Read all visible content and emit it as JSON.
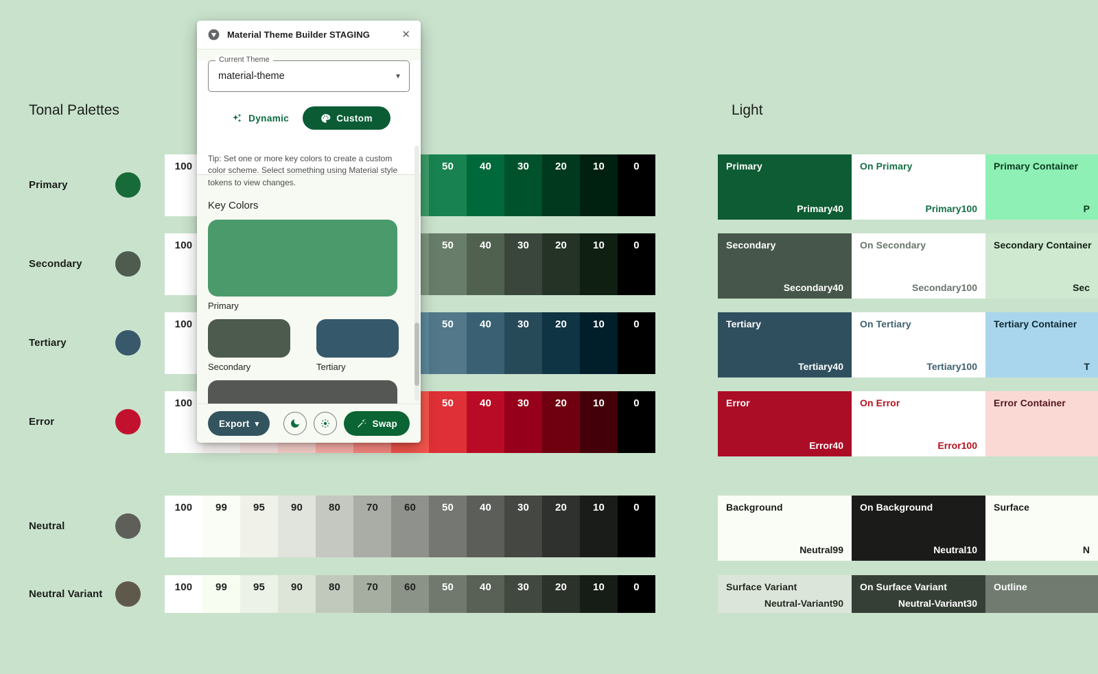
{
  "page": {
    "background": "#C9E2CC"
  },
  "left": {
    "title": "Tonal Palettes",
    "rows": [
      {
        "label": "Primary",
        "color": "#176B39"
      },
      {
        "label": "Secondary",
        "color": "#4E5C50"
      },
      {
        "label": "Tertiary",
        "color": "#38596C"
      },
      {
        "label": "Error",
        "color": "#C2112E"
      },
      {
        "label": "Neutral",
        "color": "#5D5F58"
      },
      {
        "label": "Neutral Variant",
        "color": "#5F594C"
      }
    ]
  },
  "palettes": {
    "tones": [
      "100",
      "99",
      "95",
      "90",
      "80",
      "70",
      "60",
      "50",
      "40",
      "30",
      "20",
      "10",
      "0"
    ],
    "white_text_from": 7,
    "rows": [
      {
        "name": "primary",
        "colors": [
          "#FFFFFF",
          "#F5FFF2",
          "#C2FFCE",
          "#92F2B9",
          "#76D69D",
          "#59BA83",
          "#3C9E69",
          "#188350",
          "#00693B",
          "#00522D",
          "#00391E",
          "#002110",
          "#000000"
        ]
      },
      {
        "name": "secondary",
        "colors": [
          "#FFFFFF",
          "#F6FFF1",
          "#DEEDD8",
          "#CFE9D0",
          "#B3CCB4",
          "#98B199",
          "#7E967F",
          "#697E6A",
          "#50614F",
          "#3A463B",
          "#243326",
          "#0F1F12",
          "#000000"
        ]
      },
      {
        "name": "tertiary",
        "colors": [
          "#FFFFFF",
          "#F3FAFF",
          "#DCF3FF",
          "#AFDBEF",
          "#93BFD5",
          "#78A4B9",
          "#5D899E",
          "#52788A",
          "#3A6173",
          "#274A59",
          "#0F3443",
          "#001F2A",
          "#000000"
        ]
      },
      {
        "name": "error",
        "colors": [
          "#FFFFFF",
          "#FFF9F8",
          "#FFE9E6",
          "#FFD6D1",
          "#FFB3AC",
          "#FC8A82",
          "#F4564C",
          "#DE3036",
          "#BA0B26",
          "#96001A",
          "#700010",
          "#440008",
          "#000000"
        ]
      },
      {
        "name": "neutral",
        "colors": [
          "#FFFFFF",
          "#FAFDF5",
          "#F0F2EA",
          "#E1E3DD",
          "#C5C7C1",
          "#AAACA6",
          "#8F918C",
          "#757772",
          "#5C5E5A",
          "#454743",
          "#2E312D",
          "#191C19",
          "#000000"
        ]
      },
      {
        "name": "neutral-variant",
        "colors": [
          "#FFFFFF",
          "#F8FDF2",
          "#ECF2E8",
          "#DDE5D9",
          "#C1C9BD",
          "#A6AEA2",
          "#8B9388",
          "#71796E",
          "#596156",
          "#41483F",
          "#2B322A",
          "#161D16",
          "#000000"
        ]
      }
    ]
  },
  "light": {
    "title": "Light",
    "rows": [
      [
        {
          "title": "Primary",
          "token": "Primary40",
          "bg": "#0E5C33",
          "fg": "#FFFFFF"
        },
        {
          "title": "On Primary",
          "token": "Primary100",
          "bg": "#FFFFFF",
          "fg": "#147045"
        },
        {
          "title": "Primary Container",
          "token": "P",
          "bg": "#8FF0B5",
          "fg": "#0A3B1F"
        }
      ],
      [
        {
          "title": "Secondary",
          "token": "Secondary40",
          "bg": "#47564A",
          "fg": "#FFFFFF"
        },
        {
          "title": "On Secondary",
          "token": "Secondary100",
          "bg": "#FFFFFF",
          "fg": "#66766B"
        },
        {
          "title": "Secondary Container",
          "token": "Sec",
          "bg": "#CFE9D0",
          "fg": "#131F15"
        }
      ],
      [
        {
          "title": "Tertiary",
          "token": "Tertiary40",
          "bg": "#2F4F5E",
          "fg": "#FFFFFF"
        },
        {
          "title": "On Tertiary",
          "token": "Tertiary100",
          "bg": "#FFFFFF",
          "fg": "#3E606F"
        },
        {
          "title": "Tertiary Container",
          "token": "T",
          "bg": "#A9D6EC",
          "fg": "#0E2833"
        }
      ],
      [
        {
          "title": "Error",
          "token": "Error40",
          "bg": "#AB0D26",
          "fg": "#FFFFFF"
        },
        {
          "title": "On Error",
          "token": "Error100",
          "bg": "#FFFFFF",
          "fg": "#B5121F"
        },
        {
          "title": "Error Container",
          "token": "",
          "bg": "#FAD9D4",
          "fg": "#54151A"
        }
      ],
      [
        {
          "title": "Background",
          "token": "Neutral99",
          "bg": "#FAFDF5",
          "fg": "#191C19"
        },
        {
          "title": "On Background",
          "token": "Neutral10",
          "bg": "#1B1C1A",
          "fg": "#FFFFFF"
        },
        {
          "title": "Surface",
          "token": "N",
          "bg": "#FAFDF5",
          "fg": "#191C19"
        }
      ],
      [
        {
          "title": "Surface Variant",
          "token": "Neutral-Variant90",
          "bg": "#DBE5D9",
          "fg": "#232822"
        },
        {
          "title": "On Surface Variant",
          "token": "Neutral-Variant30",
          "bg": "#353F36",
          "fg": "#FFFFFF"
        },
        {
          "title": "Outline",
          "token": "",
          "bg": "#717B70",
          "fg": "#FFFFFF"
        }
      ]
    ]
  },
  "plugin": {
    "title": "Material Theme Builder STAGING",
    "close": "✕",
    "theme": {
      "label": "Current Theme",
      "value": "material-theme",
      "caret": "▾"
    },
    "actions": {
      "dynamic": "Dynamic",
      "custom": "Custom"
    },
    "tip": "Tip: Set one or more key colors to create a custom color scheme. Select something using Material style tokens to view changes.",
    "key_colors": {
      "heading": "Key Colors",
      "primary": {
        "label": "Primary",
        "color": "#4A9A6C"
      },
      "secondary": {
        "label": "Secondary",
        "color": "#4D5B4F"
      },
      "tertiary": {
        "label": "Tertiary",
        "color": "#36586B"
      },
      "extra_color": "#545753"
    },
    "footer": {
      "export": "Export",
      "export_caret": "▾",
      "swap": "Swap"
    },
    "accents": {
      "green": "#0B6B3F",
      "custom_bg": "#0B5C35",
      "export_bg": "#33545F",
      "swap_bg": "#0A6434"
    }
  }
}
